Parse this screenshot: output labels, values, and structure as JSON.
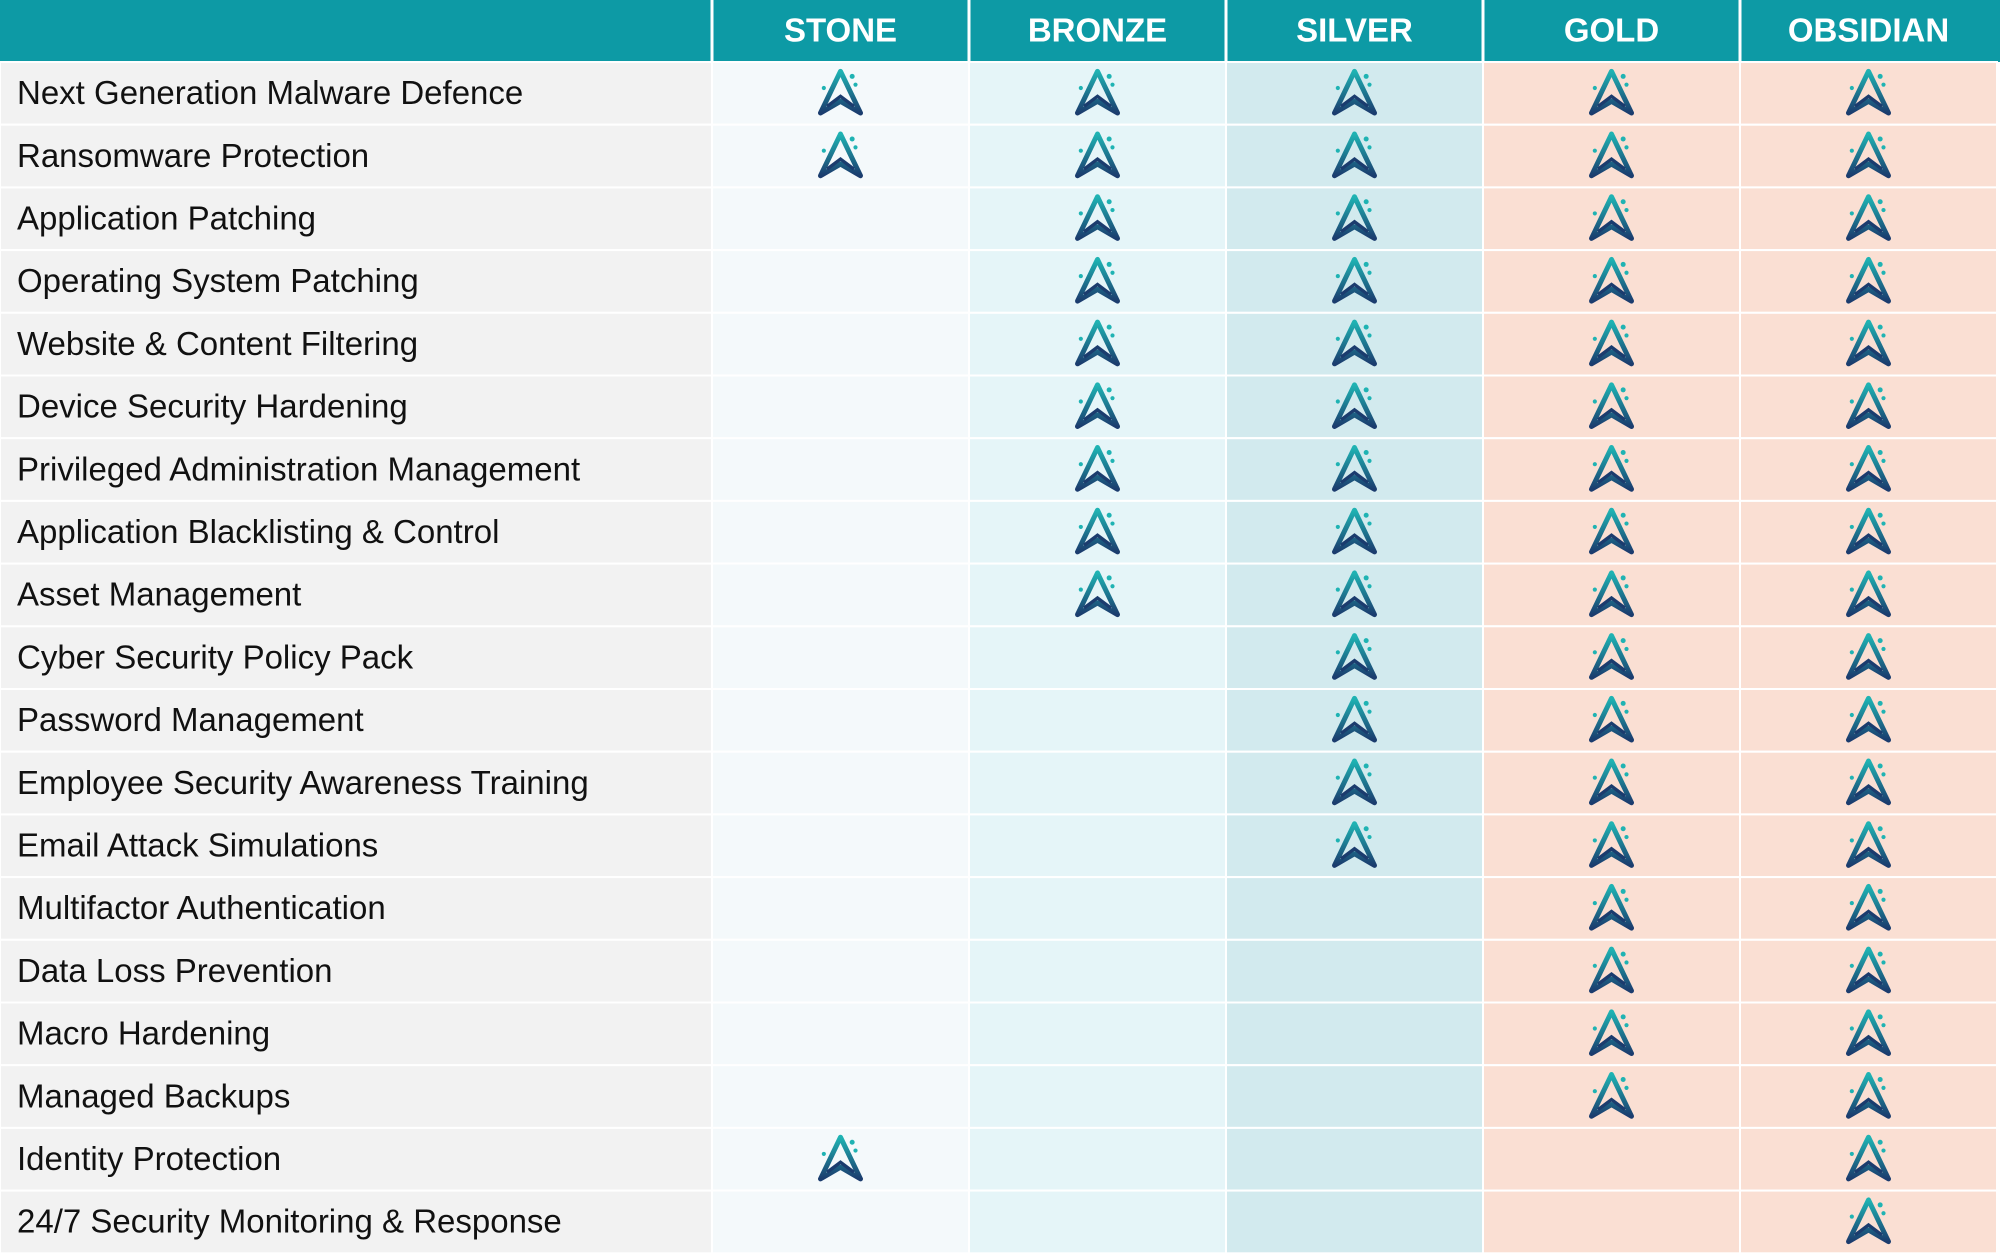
{
  "table": {
    "columns": [
      "STONE",
      "BRONZE",
      "SILVER",
      "GOLD",
      "OBSIDIAN"
    ],
    "rows": [
      {
        "feature": "Next Generation Malware Defence",
        "included": [
          true,
          true,
          true,
          true,
          true
        ]
      },
      {
        "feature": "Ransomware Protection",
        "included": [
          true,
          true,
          true,
          true,
          true
        ]
      },
      {
        "feature": "Application Patching",
        "included": [
          false,
          true,
          true,
          true,
          true
        ]
      },
      {
        "feature": "Operating System Patching",
        "included": [
          false,
          true,
          true,
          true,
          true
        ]
      },
      {
        "feature": "Website & Content Filtering",
        "included": [
          false,
          true,
          true,
          true,
          true
        ]
      },
      {
        "feature": "Device Security Hardening",
        "included": [
          false,
          true,
          true,
          true,
          true
        ]
      },
      {
        "feature": "Privileged Administration Management",
        "included": [
          false,
          true,
          true,
          true,
          true
        ]
      },
      {
        "feature": "Application Blacklisting & Control",
        "included": [
          false,
          true,
          true,
          true,
          true
        ]
      },
      {
        "feature": "Asset Management",
        "included": [
          false,
          true,
          true,
          true,
          true
        ]
      },
      {
        "feature": "Cyber Security Policy Pack",
        "included": [
          false,
          false,
          true,
          true,
          true
        ]
      },
      {
        "feature": "Password Management",
        "included": [
          false,
          false,
          true,
          true,
          true
        ]
      },
      {
        "feature": "Employee Security Awareness Training",
        "included": [
          false,
          false,
          true,
          true,
          true
        ]
      },
      {
        "feature": "Email Attack Simulations",
        "included": [
          false,
          false,
          true,
          true,
          true
        ]
      },
      {
        "feature": "Multifactor Authentication",
        "included": [
          false,
          false,
          false,
          true,
          true
        ]
      },
      {
        "feature": "Data Loss Prevention",
        "included": [
          false,
          false,
          false,
          true,
          true
        ]
      },
      {
        "feature": "Macro Hardening",
        "included": [
          false,
          false,
          false,
          true,
          true
        ]
      },
      {
        "feature": "Managed Backups",
        "included": [
          false,
          false,
          false,
          true,
          true
        ]
      },
      {
        "feature": "Identity Protection",
        "included": [
          true,
          false,
          false,
          false,
          true
        ]
      },
      {
        "feature": "24/7 Security Monitoring & Response",
        "included": [
          false,
          false,
          false,
          false,
          true
        ]
      }
    ]
  }
}
